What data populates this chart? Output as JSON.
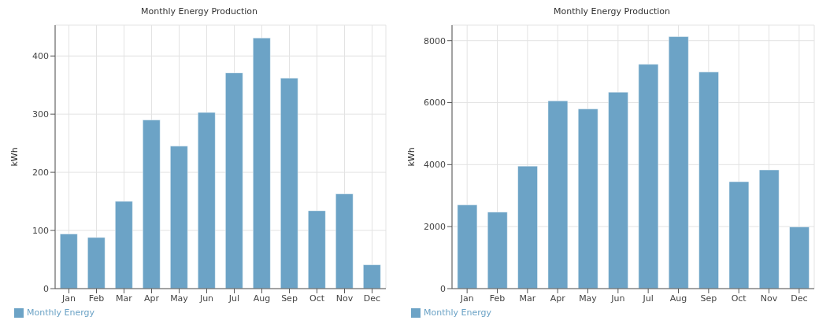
{
  "chart_data": [
    {
      "type": "bar",
      "title": "Monthly Energy Production",
      "ylabel": "kWh",
      "categories": [
        "Jan",
        "Feb",
        "Mar",
        "Apr",
        "May",
        "Jun",
        "Jul",
        "Aug",
        "Sep",
        "Oct",
        "Nov",
        "Dec"
      ],
      "series": [
        {
          "name": "Monthly Energy",
          "color": "#6ca3c6",
          "values": [
            94,
            88,
            150,
            290,
            245,
            303,
            371,
            431,
            362,
            134,
            163,
            41
          ]
        }
      ],
      "ylim": [
        0,
        453
      ],
      "yticks": [
        0,
        100,
        200,
        300,
        400
      ],
      "grid": true,
      "legend": "bottom left"
    },
    {
      "type": "bar",
      "title": "Monthly Energy Production",
      "ylabel": "kWh",
      "categories": [
        "Jan",
        "Feb",
        "Mar",
        "Apr",
        "May",
        "Jun",
        "Jul",
        "Aug",
        "Sep",
        "Oct",
        "Nov",
        "Dec"
      ],
      "series": [
        {
          "name": "Monthly Energy",
          "color": "#6ca3c6",
          "values": [
            2700,
            2470,
            3955,
            6060,
            5800,
            6340,
            7240,
            8130,
            6990,
            3450,
            3830,
            1990
          ]
        }
      ],
      "ylim": [
        0,
        8500
      ],
      "yticks": [
        0,
        2000,
        4000,
        6000,
        8000
      ],
      "grid": true,
      "legend": "bottom left"
    }
  ]
}
